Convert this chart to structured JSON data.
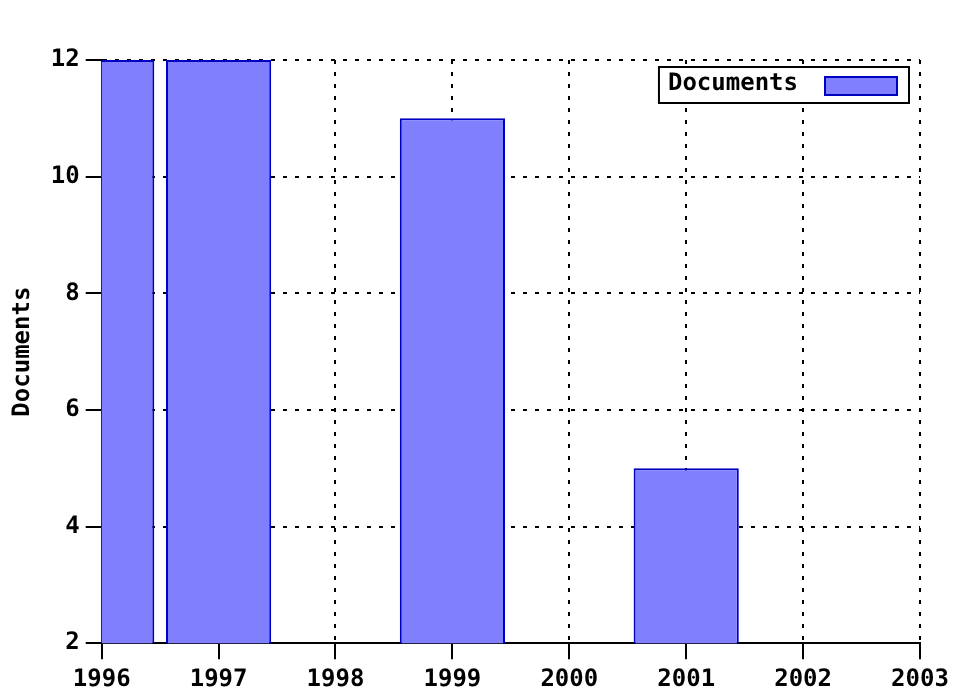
{
  "chart_data": {
    "type": "bar",
    "ylabel": "Documents",
    "x": [
      1996,
      1997,
      1999,
      2001
    ],
    "series": [
      {
        "name": "Documents",
        "color": "#8080ff",
        "values": [
          12,
          12,
          11,
          5
        ]
      }
    ],
    "xlim": [
      1996,
      2003
    ],
    "xticks": [
      1996,
      1997,
      1998,
      1999,
      2000,
      2001,
      2002,
      2003
    ],
    "ylim": [
      2,
      12
    ],
    "yticks": [
      2,
      4,
      6,
      8,
      10,
      12
    ],
    "grid": true,
    "legend": "top right"
  }
}
